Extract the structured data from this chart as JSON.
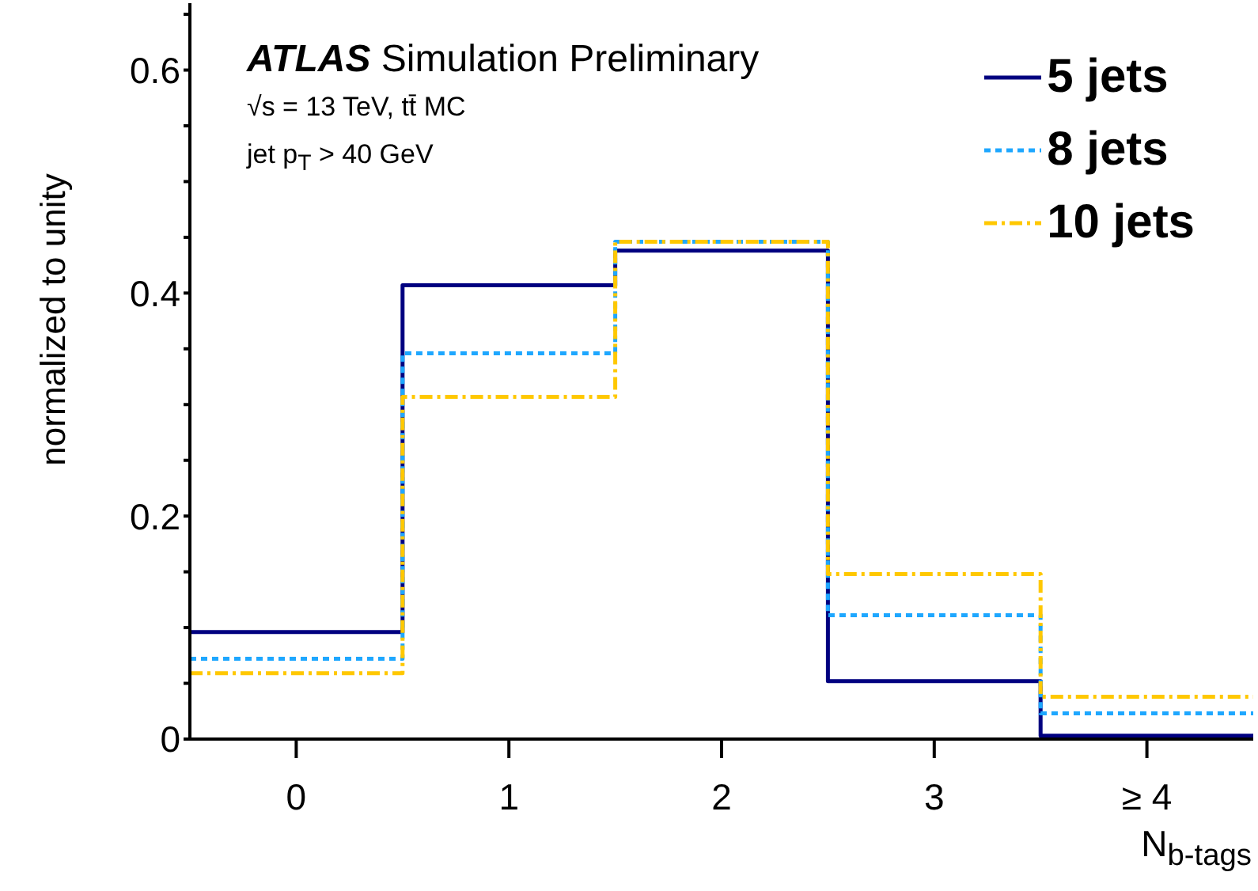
{
  "chart_data": {
    "type": "histogram",
    "title": "ATLAS Simulation Preliminary",
    "annotations": [
      "√s = 13 TeV, tt̄ MC",
      "jet p$_{T}$ > 40 GeV"
    ],
    "xlabel": "N$_{b-tags}$",
    "ylabel": "normalized to unity",
    "bins": [
      -0.5,
      0.5,
      1.5,
      2.5,
      3.5,
      4.5
    ],
    "xlim": [
      -0.5,
      4.5
    ],
    "xticks": [
      0,
      1,
      2,
      3,
      {
        "value": 4,
        "label": "≥ 4"
      }
    ],
    "series": [
      {
        "name": "5 jets",
        "color": "#000080",
        "line_style": "solid",
        "values": [
          0.096,
          0.407,
          0.438,
          0.052,
          0.003
        ]
      },
      {
        "name": "8 jets",
        "color": "#1ea7ff",
        "line_style": "dashed",
        "values": [
          0.072,
          0.346,
          0.446,
          0.111,
          0.023
        ]
      },
      {
        "name": "10 jets",
        "color": "#ffc800",
        "line_style": "dashdot",
        "values": [
          0.059,
          0.307,
          0.446,
          0.148,
          0.038
        ]
      }
    ],
    "ylim": [
      0,
      0.66
    ],
    "yticks": [
      0,
      {
        "value": 0.05,
        "label": null
      },
      {
        "value": 0.1,
        "label": null
      },
      {
        "value": 0.15,
        "label": null
      },
      0.2,
      {
        "value": 0.25,
        "label": null
      },
      {
        "value": 0.3,
        "label": null
      },
      {
        "value": 0.35,
        "label": null
      },
      0.4,
      {
        "value": 0.45,
        "label": null
      },
      {
        "value": 0.5,
        "label": null
      },
      {
        "value": 0.55,
        "label": null
      },
      0.6,
      {
        "value": 0.65,
        "label": null
      }
    ],
    "legend": "top right",
    "grid": false
  }
}
